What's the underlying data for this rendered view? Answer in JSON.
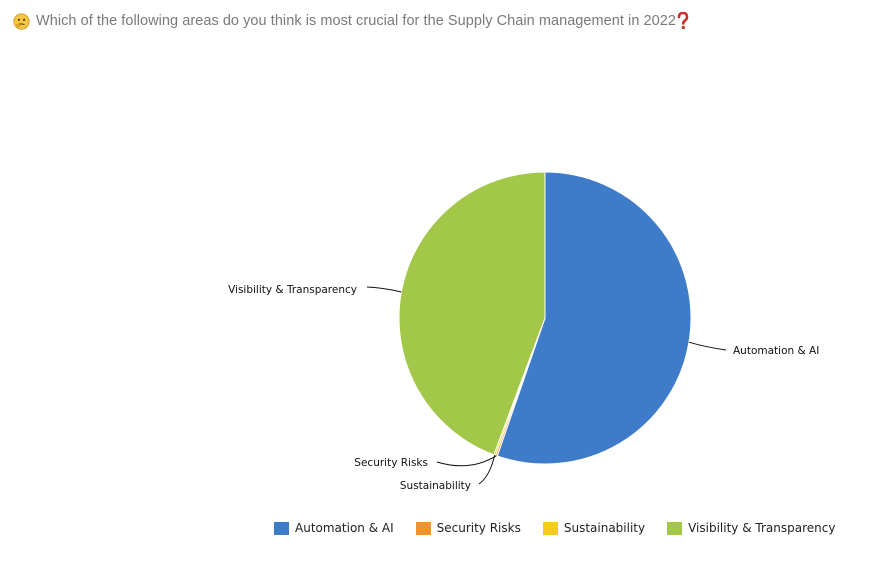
{
  "question": {
    "text": "Which of the following areas do you think is most crucial for the Supply Chain management in 2022",
    "face_icon": "thinking-face-icon",
    "mark_icon": "red-question-mark-icon"
  },
  "chart_data": {
    "type": "pie",
    "title": "",
    "labels": [
      "Automation & AI",
      "Security Risks",
      "Sustainability",
      "Visibility & Transparency"
    ],
    "values": [
      55.3,
      0.2,
      0.2,
      44.3
    ],
    "colors": [
      "#3e7bc9",
      "#f2922a",
      "#f5cc1c",
      "#a2c749"
    ],
    "legend_placement": "bottom"
  }
}
